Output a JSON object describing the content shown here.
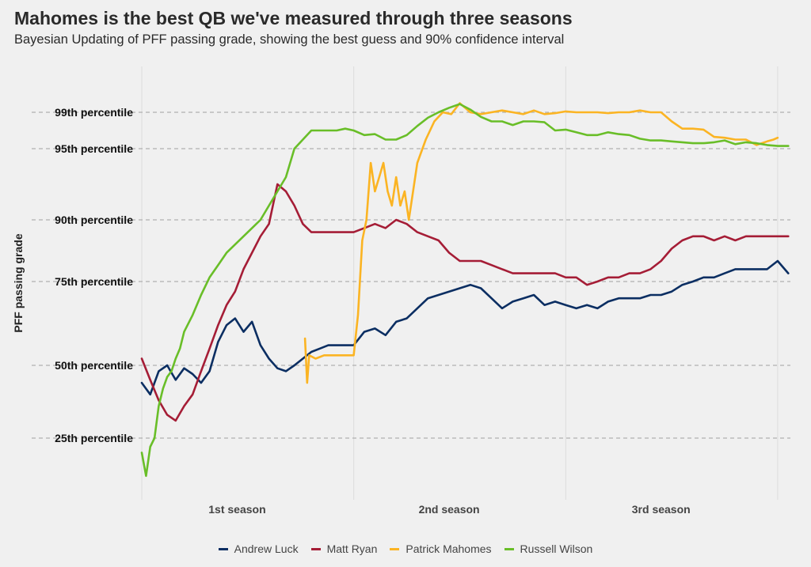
{
  "chart_data": {
    "type": "line",
    "title": "Mahomes is the best QB we've measured through three seasons",
    "subtitle": "Bayesian Updating of PFF passing grade, showing the best guess and 90% confidence interval",
    "xlabel": "",
    "ylabel": "PFF passing grade",
    "x_tick_labels": [
      "1st season",
      "2nd season",
      "3rd season"
    ],
    "xlim": [
      0,
      3
    ],
    "y_ticks": [
      {
        "label": "25th percentile",
        "value": 25
      },
      {
        "label": "50th percentile",
        "value": 50
      },
      {
        "label": "75th percentile",
        "value": 75
      },
      {
        "label": "90th percentile",
        "value": 90
      },
      {
        "label": "95th percentile",
        "value": 95
      },
      {
        "label": "99th percentile",
        "value": 99
      }
    ],
    "y_scale": "percentile",
    "grid": true,
    "legend_position": "bottom",
    "series": [
      {
        "name": "Andrew Luck",
        "color": "#0b2e62",
        "x": [
          0,
          0.04,
          0.08,
          0.12,
          0.16,
          0.2,
          0.24,
          0.28,
          0.32,
          0.36,
          0.4,
          0.44,
          0.48,
          0.52,
          0.56,
          0.6,
          0.64,
          0.68,
          0.72,
          0.76,
          0.8,
          0.84,
          0.88,
          0.92,
          0.96,
          1.0,
          1.05,
          1.1,
          1.15,
          1.2,
          1.25,
          1.3,
          1.35,
          1.4,
          1.45,
          1.5,
          1.55,
          1.6,
          1.65,
          1.7,
          1.75,
          1.8,
          1.85,
          1.9,
          1.95,
          2.0,
          2.05,
          2.1,
          2.15,
          2.2,
          2.25,
          2.3,
          2.35,
          2.4,
          2.45,
          2.5,
          2.55,
          2.6,
          2.65,
          2.7,
          2.75,
          2.8,
          2.85,
          2.9,
          2.95,
          3.0,
          3.05
        ],
        "values": [
          44,
          40,
          48,
          50,
          45,
          49,
          47,
          44,
          48,
          57,
          62,
          64,
          60,
          63,
          56,
          52,
          49,
          48,
          50,
          52,
          54,
          55,
          56,
          56,
          56,
          56,
          60,
          61,
          59,
          63,
          64,
          67,
          70,
          71,
          72,
          73,
          74,
          73,
          70,
          67,
          69,
          70,
          71,
          68,
          69,
          68,
          67,
          68,
          67,
          69,
          70,
          70,
          70,
          71,
          71,
          72,
          74,
          75,
          76,
          76,
          77,
          78,
          78,
          78,
          78,
          80,
          77
        ]
      },
      {
        "name": "Matt Ryan",
        "color": "#a51d36",
        "x": [
          0,
          0.04,
          0.08,
          0.12,
          0.16,
          0.2,
          0.24,
          0.28,
          0.32,
          0.36,
          0.4,
          0.44,
          0.48,
          0.52,
          0.56,
          0.6,
          0.64,
          0.68,
          0.72,
          0.76,
          0.8,
          0.84,
          0.88,
          0.92,
          0.96,
          1.0,
          1.05,
          1.1,
          1.15,
          1.2,
          1.25,
          1.3,
          1.35,
          1.4,
          1.45,
          1.5,
          1.55,
          1.6,
          1.65,
          1.7,
          1.75,
          1.8,
          1.85,
          1.9,
          1.95,
          2.0,
          2.05,
          2.1,
          2.15,
          2.2,
          2.25,
          2.3,
          2.35,
          2.4,
          2.45,
          2.5,
          2.55,
          2.6,
          2.65,
          2.7,
          2.75,
          2.8,
          2.85,
          2.9,
          2.95,
          3.0,
          3.05
        ],
        "values": [
          52,
          45,
          38,
          33,
          31,
          36,
          40,
          48,
          55,
          62,
          68,
          72,
          78,
          82,
          86,
          89,
          92.5,
          92,
          91,
          89,
          87,
          87,
          87,
          87,
          87,
          87,
          88,
          89,
          88,
          90,
          89,
          87,
          86,
          85,
          82,
          80,
          80,
          80,
          79,
          78,
          77,
          77,
          77,
          77,
          77,
          76,
          76,
          74,
          75,
          76,
          76,
          77,
          77,
          78,
          80,
          83,
          85,
          86,
          86,
          85,
          86,
          85,
          86,
          86,
          86,
          86,
          86
        ]
      },
      {
        "name": "Patrick Mahomes",
        "color": "#fbb423",
        "x": [
          0.77,
          0.78,
          0.79,
          0.82,
          0.86,
          0.9,
          0.96,
          1.0,
          1.02,
          1.04,
          1.06,
          1.08,
          1.1,
          1.12,
          1.14,
          1.16,
          1.18,
          1.2,
          1.22,
          1.24,
          1.26,
          1.3,
          1.34,
          1.38,
          1.42,
          1.46,
          1.5,
          1.55,
          1.6,
          1.65,
          1.7,
          1.75,
          1.8,
          1.85,
          1.9,
          1.95,
          2.0,
          2.05,
          2.1,
          2.15,
          2.2,
          2.25,
          2.3,
          2.35,
          2.4,
          2.45,
          2.5,
          2.55,
          2.6,
          2.65,
          2.7,
          2.75,
          2.8,
          2.85,
          2.9,
          2.95,
          2.98,
          3.0
        ],
        "values": [
          58,
          44,
          53,
          52,
          53,
          53,
          53,
          53,
          65,
          85,
          90,
          94,
          92,
          93,
          94,
          92,
          91,
          93,
          91,
          92,
          90,
          94,
          96,
          98,
          99,
          98.8,
          100,
          99,
          98.8,
          99,
          99.2,
          99,
          98.8,
          99.2,
          98.8,
          98.9,
          99.1,
          99.0,
          99.0,
          99.0,
          98.9,
          99.0,
          99.0,
          99.2,
          99.0,
          99.0,
          98.0,
          97.2,
          97.2,
          97.1,
          96.3,
          96.2,
          96.0,
          96.0,
          95.4,
          95.8,
          96.0,
          96.2
        ]
      },
      {
        "name": "Russell Wilson",
        "color": "#69be28",
        "x": [
          0,
          0.02,
          0.04,
          0.06,
          0.08,
          0.1,
          0.12,
          0.14,
          0.16,
          0.18,
          0.2,
          0.24,
          0.28,
          0.32,
          0.36,
          0.4,
          0.44,
          0.48,
          0.52,
          0.56,
          0.6,
          0.64,
          0.68,
          0.72,
          0.76,
          0.8,
          0.84,
          0.88,
          0.92,
          0.96,
          1.0,
          1.05,
          1.1,
          1.15,
          1.2,
          1.25,
          1.3,
          1.35,
          1.4,
          1.45,
          1.5,
          1.55,
          1.6,
          1.65,
          1.7,
          1.75,
          1.8,
          1.85,
          1.9,
          1.95,
          2.0,
          2.05,
          2.1,
          2.15,
          2.2,
          2.25,
          2.3,
          2.35,
          2.4,
          2.45,
          2.5,
          2.55,
          2.6,
          2.65,
          2.7,
          2.75,
          2.8,
          2.85,
          2.9,
          2.95,
          3.0,
          3.05
        ],
        "values": [
          20,
          12,
          22,
          25,
          36,
          42,
          46,
          48,
          52,
          55,
          60,
          65,
          71,
          76,
          79,
          82,
          84,
          86,
          88,
          90,
          91,
          92,
          93,
          95,
          96,
          97,
          97,
          97,
          97,
          97.2,
          97,
          96.5,
          96.6,
          96.0,
          96.0,
          96.5,
          97.5,
          98.4,
          99.0,
          99.5,
          99.9,
          99.3,
          98.5,
          98.0,
          98.0,
          97.6,
          98.0,
          98.0,
          97.9,
          97.0,
          97.1,
          96.8,
          96.5,
          96.5,
          96.8,
          96.6,
          96.5,
          96.1,
          95.9,
          95.9,
          95.8,
          95.7,
          95.6,
          95.6,
          95.7,
          95.9,
          95.5,
          95.7,
          95.6,
          95.4,
          95.3,
          95.3
        ]
      }
    ]
  }
}
